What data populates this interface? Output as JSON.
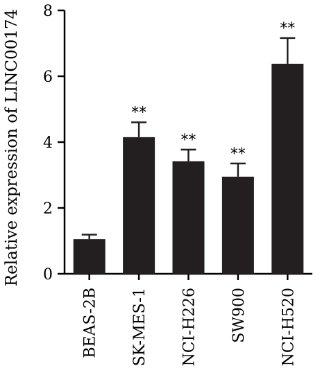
{
  "chart_data": {
    "type": "bar",
    "title": "",
    "xlabel": "",
    "ylabel": "Relative expression of LINC00174",
    "ylim": [
      0,
      8
    ],
    "yticks": [
      0,
      2,
      4,
      6,
      8
    ],
    "categories": [
      "BEAS-2B",
      "SK-MES-1",
      "NCI-H226",
      "SW900",
      "NCI-H520"
    ],
    "values": [
      1.05,
      4.15,
      3.42,
      2.95,
      6.38
    ],
    "errors": [
      0.14,
      0.45,
      0.35,
      0.4,
      0.78
    ],
    "significance": [
      "",
      "**",
      "**",
      "**",
      "**"
    ],
    "bar_color": "#231f20",
    "grid": false,
    "legend": "none"
  }
}
